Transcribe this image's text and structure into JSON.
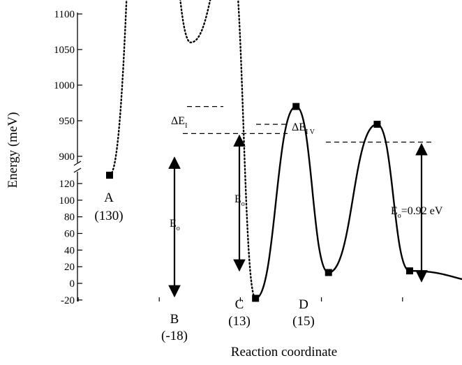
{
  "chart_data": {
    "type": "line",
    "xlabel": "Reaction coordinate",
    "ylabel": "Energy (meV)",
    "axis_break": true,
    "y_upper_segment": {
      "ylim": [
        875,
        1100
      ],
      "ticks": [
        900,
        950,
        1000,
        1050,
        1100
      ]
    },
    "y_lower_segment": {
      "ylim": [
        -25,
        135
      ],
      "ticks": [
        -20,
        0,
        20,
        40,
        60,
        80,
        100,
        120
      ]
    },
    "grid": false,
    "legend": "none",
    "x_ticks": [
      1,
      2,
      3,
      4,
      5,
      6,
      7,
      8,
      9,
      10
    ],
    "series": [
      {
        "style": "dotted",
        "x": [
          1.0,
          1.5,
          2.0,
          2.5,
          2.8
        ],
        "y": [
          130,
          750,
          1060,
          400,
          -18
        ]
      },
      {
        "style": "solid",
        "x": [
          2.8,
          3.3,
          3.7,
          4.3,
          4.7,
          5.8,
          6.8,
          7.8
        ],
        "y": [
          -18,
          970,
          13,
          945,
          15,
          0,
          920,
          0
        ]
      }
    ],
    "markers": [
      {
        "x": 1.0,
        "y": 130
      },
      {
        "x": 2.8,
        "y": -18
      },
      {
        "x": 3.3,
        "y": 970
      },
      {
        "x": 3.7,
        "y": 13
      },
      {
        "x": 4.3,
        "y": 945
      },
      {
        "x": 4.7,
        "y": 15
      },
      {
        "x": 5.8,
        "y": 0
      },
      {
        "x": 6.8,
        "y": 920
      },
      {
        "x": 7.8,
        "y": 0
      }
    ],
    "point_labels": [
      {
        "name": "A",
        "value": "(130)"
      },
      {
        "name": "B",
        "value": "(-18)"
      },
      {
        "name": "C",
        "value": "(13)"
      },
      {
        "name": "D",
        "value": "(15)"
      }
    ],
    "annotations": {
      "e0_left": {
        "main": "E",
        "sub": "o"
      },
      "e0_mid": {
        "main": "E",
        "sub": "o"
      },
      "e0_right": {
        "main": "E",
        "sub": "o",
        "tail": "=0.92 eV"
      },
      "delta_i": {
        "main": "ΔE",
        "sub": "I"
      },
      "delta_iv": {
        "main": "ΔE",
        "sub": "I V"
      }
    }
  }
}
